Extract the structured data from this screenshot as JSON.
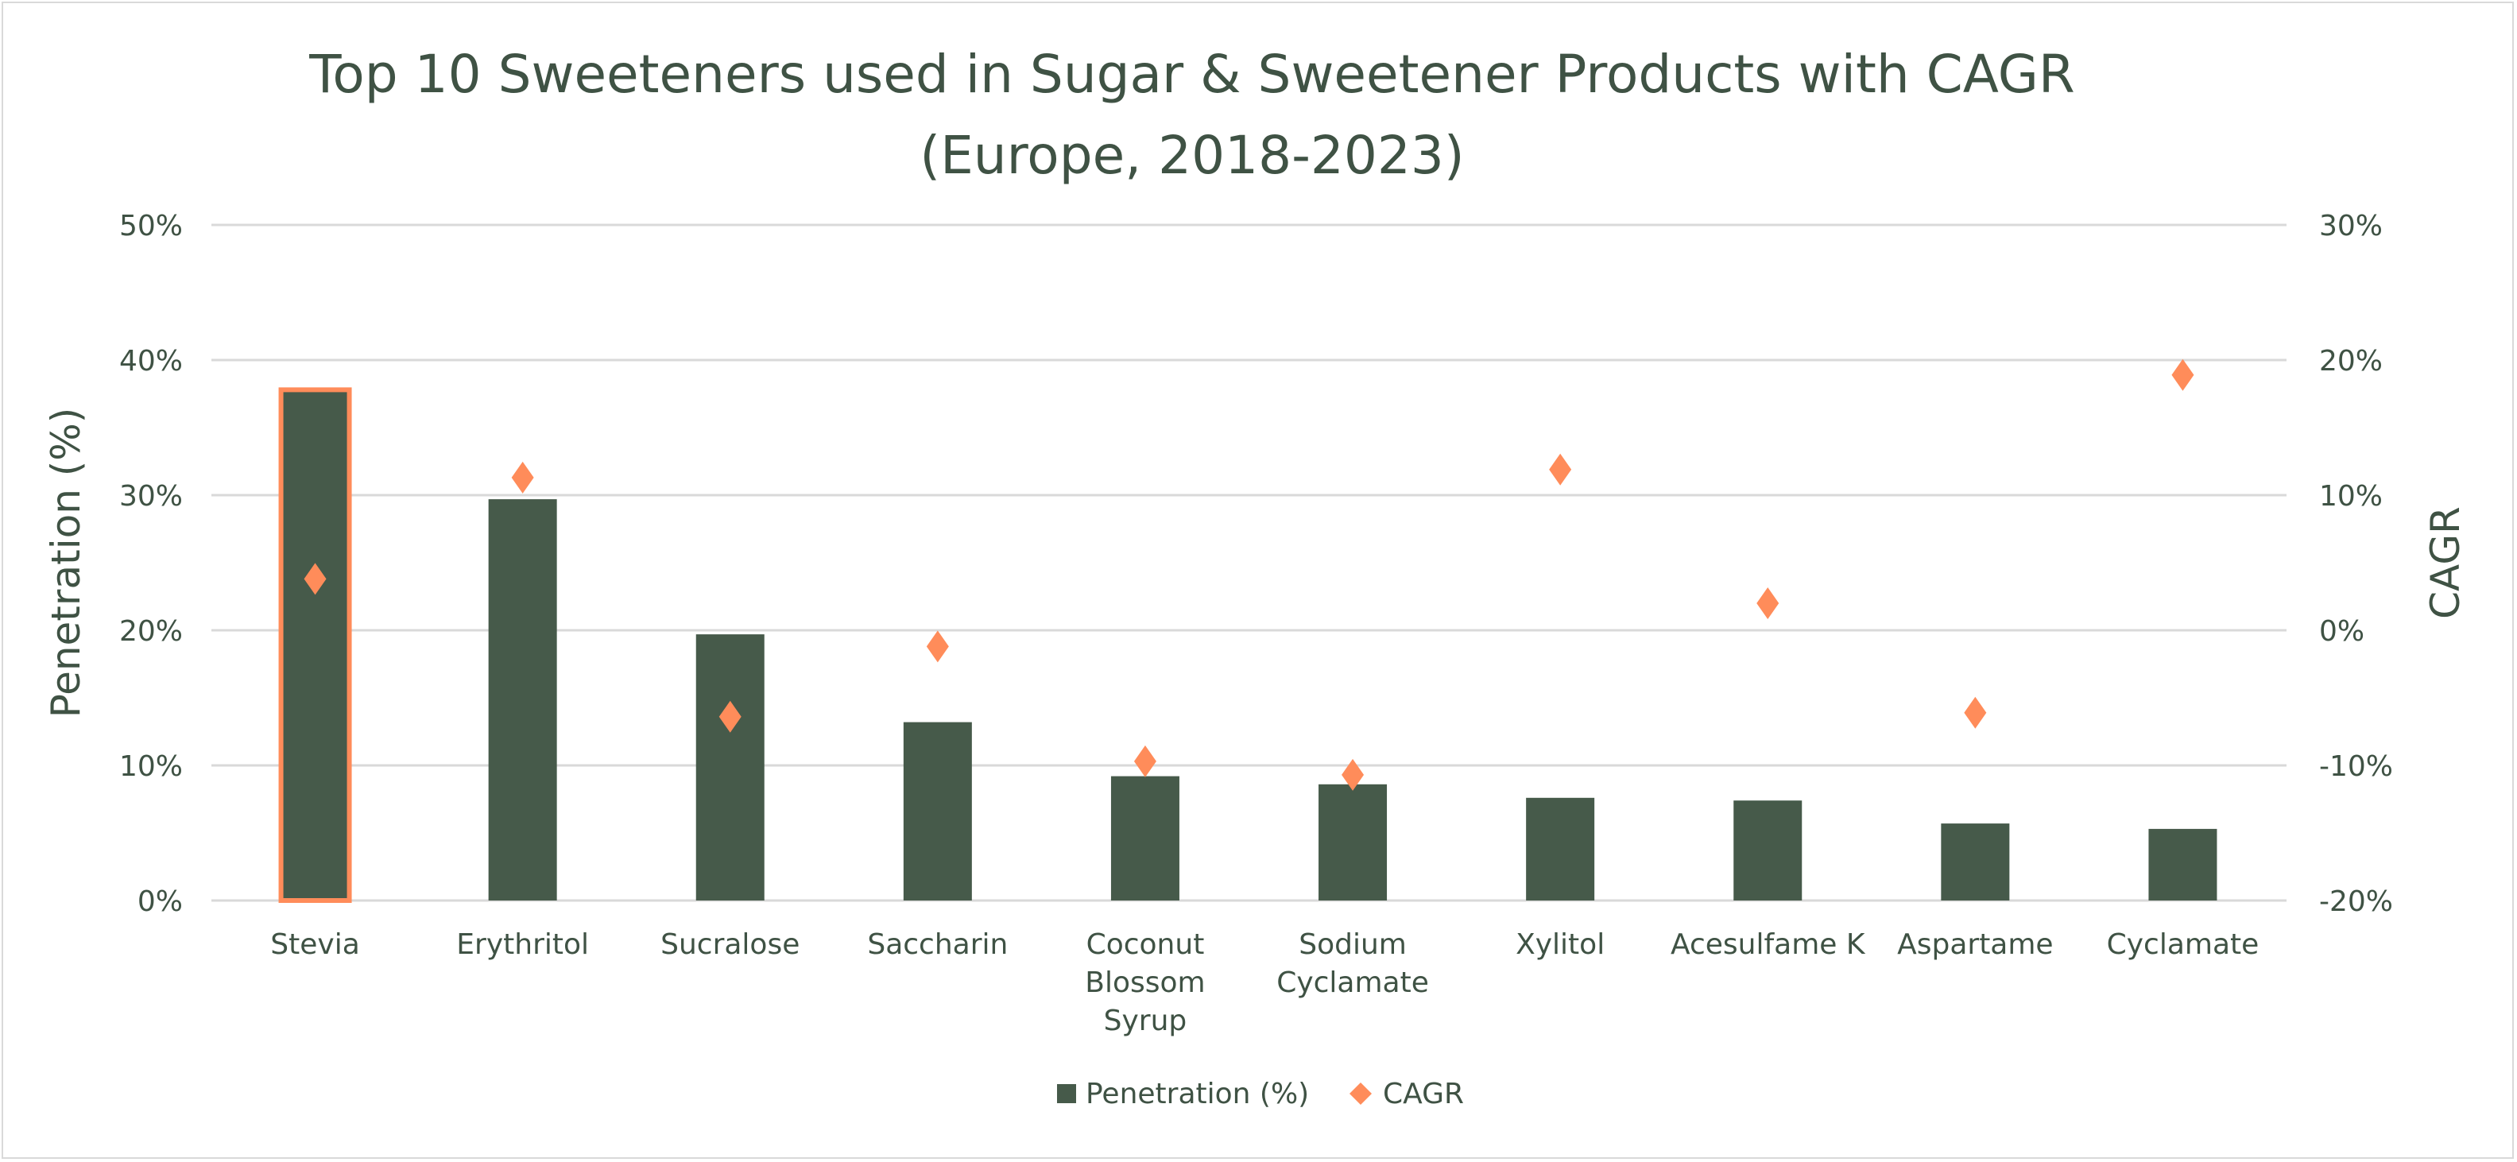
{
  "chart_data": {
    "type": "bar",
    "title": "Top 10 Sweeteners used in Sugar & Sweetener Products with CAGR",
    "subtitle": "(Europe, 2018-2023)",
    "ylabel": "Penetration (%)",
    "y2label": "CAGR",
    "ylim": [
      0,
      50
    ],
    "y2lim": [
      -20,
      30
    ],
    "yticks": [
      "0%",
      "10%",
      "20%",
      "30%",
      "40%",
      "50%"
    ],
    "y2ticks": [
      "-20%",
      "-10%",
      "0%",
      "10%",
      "20%",
      "30%"
    ],
    "grid": true,
    "legend_position": "bottom",
    "categories": [
      [
        "Stevia"
      ],
      [
        "Erythritol"
      ],
      [
        "Sucralose"
      ],
      [
        "Saccharin"
      ],
      [
        "Coconut",
        "Blossom",
        "Syrup"
      ],
      [
        "Sodium",
        "Cyclamate"
      ],
      [
        "Xylitol"
      ],
      [
        "Acesulfame K"
      ],
      [
        "Aspartame"
      ],
      [
        "Cyclamate"
      ]
    ],
    "series": [
      {
        "name": "Penetration (%)",
        "type": "bar",
        "axis": "left",
        "color": "#465a4a",
        "values": [
          37.8,
          29.7,
          19.7,
          13.2,
          9.2,
          8.6,
          7.6,
          7.4,
          5.7,
          5.3
        ]
      },
      {
        "name": "CAGR",
        "type": "scatter",
        "marker": "diamond",
        "axis": "right",
        "color": "#ff8c5a",
        "values": [
          3.8,
          11.3,
          -6.4,
          -1.2,
          -9.7,
          -10.7,
          11.9,
          2.0,
          -6.1,
          18.9
        ]
      }
    ],
    "highlighted_category": "Stevia",
    "highlight_color": "#ff8c5a"
  }
}
